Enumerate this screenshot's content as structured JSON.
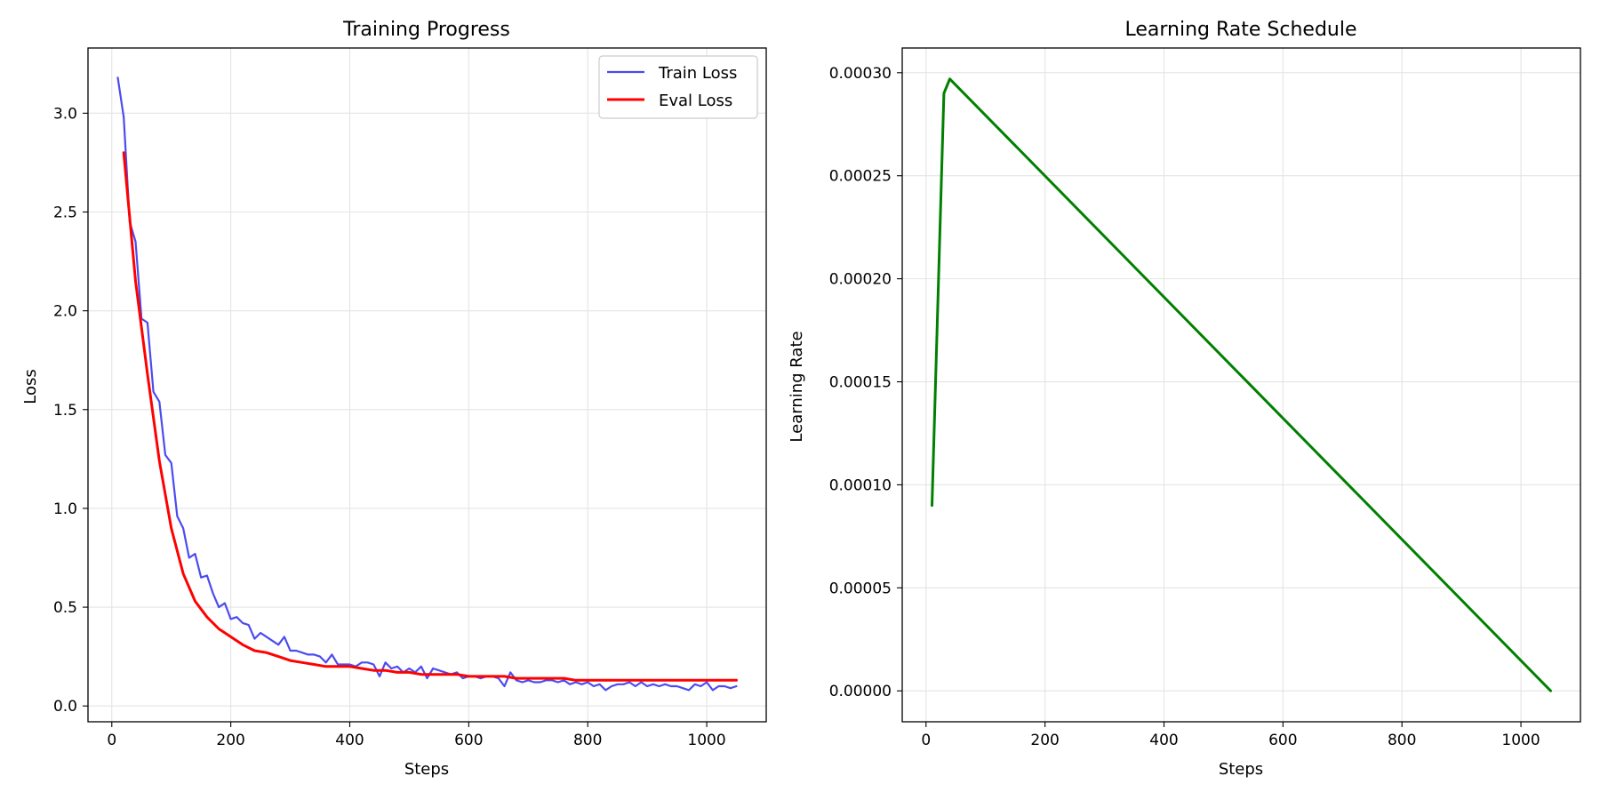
{
  "chart_data": [
    {
      "type": "line",
      "title": "Training Progress",
      "xlabel": "Steps",
      "ylabel": "Loss",
      "xlim": [
        -40,
        1100
      ],
      "ylim": [
        -0.08,
        3.33
      ],
      "xticks": [
        0,
        200,
        400,
        600,
        800,
        1000
      ],
      "yticks": [
        0.0,
        0.5,
        1.0,
        1.5,
        2.0,
        2.5,
        3.0
      ],
      "ytick_decimals": 1,
      "grid": true,
      "legend": "top-right",
      "series": [
        {
          "name": "Train Loss",
          "color": "#4b4bf0",
          "x": [
            10,
            20,
            30,
            40,
            50,
            60,
            70,
            80,
            90,
            100,
            110,
            120,
            130,
            140,
            150,
            160,
            170,
            180,
            190,
            200,
            210,
            220,
            230,
            240,
            250,
            260,
            270,
            280,
            290,
            300,
            310,
            320,
            330,
            340,
            350,
            360,
            370,
            380,
            390,
            400,
            410,
            420,
            430,
            440,
            450,
            460,
            470,
            480,
            490,
            500,
            510,
            520,
            530,
            540,
            550,
            560,
            570,
            580,
            590,
            600,
            610,
            620,
            630,
            640,
            650,
            660,
            670,
            680,
            690,
            700,
            710,
            720,
            730,
            740,
            750,
            760,
            770,
            780,
            790,
            800,
            810,
            820,
            830,
            840,
            850,
            860,
            870,
            880,
            890,
            900,
            910,
            920,
            930,
            940,
            950,
            960,
            970,
            980,
            990,
            1000,
            1010,
            1020,
            1030,
            1040,
            1050
          ],
          "y": [
            3.18,
            2.98,
            2.45,
            2.35,
            1.96,
            1.94,
            1.59,
            1.54,
            1.27,
            1.23,
            0.96,
            0.9,
            0.75,
            0.77,
            0.65,
            0.66,
            0.57,
            0.5,
            0.52,
            0.44,
            0.45,
            0.42,
            0.41,
            0.34,
            0.37,
            0.35,
            0.33,
            0.31,
            0.35,
            0.28,
            0.28,
            0.27,
            0.26,
            0.26,
            0.25,
            0.22,
            0.26,
            0.21,
            0.21,
            0.21,
            0.2,
            0.22,
            0.22,
            0.21,
            0.15,
            0.22,
            0.19,
            0.2,
            0.17,
            0.19,
            0.17,
            0.2,
            0.14,
            0.19,
            0.18,
            0.17,
            0.16,
            0.17,
            0.14,
            0.15,
            0.15,
            0.14,
            0.15,
            0.15,
            0.14,
            0.1,
            0.17,
            0.13,
            0.12,
            0.13,
            0.12,
            0.12,
            0.13,
            0.13,
            0.12,
            0.13,
            0.11,
            0.12,
            0.11,
            0.12,
            0.1,
            0.11,
            0.08,
            0.1,
            0.11,
            0.11,
            0.12,
            0.1,
            0.12,
            0.1,
            0.11,
            0.1,
            0.11,
            0.1,
            0.1,
            0.09,
            0.08,
            0.11,
            0.1,
            0.12,
            0.08,
            0.1,
            0.1,
            0.09,
            0.1
          ]
        },
        {
          "name": "Eval Loss",
          "color": "#ff0000",
          "x": [
            20,
            40,
            60,
            80,
            100,
            120,
            140,
            160,
            180,
            200,
            220,
            240,
            260,
            280,
            300,
            320,
            340,
            360,
            380,
            400,
            420,
            440,
            460,
            480,
            500,
            520,
            540,
            560,
            580,
            600,
            620,
            640,
            660,
            680,
            700,
            720,
            740,
            760,
            780,
            800,
            820,
            840,
            860,
            880,
            900,
            920,
            940,
            960,
            980,
            1000,
            1020,
            1040,
            1050
          ],
          "y": [
            2.8,
            2.15,
            1.68,
            1.24,
            0.9,
            0.67,
            0.53,
            0.45,
            0.39,
            0.35,
            0.31,
            0.28,
            0.27,
            0.25,
            0.23,
            0.22,
            0.21,
            0.2,
            0.2,
            0.2,
            0.19,
            0.18,
            0.18,
            0.17,
            0.17,
            0.16,
            0.16,
            0.16,
            0.16,
            0.15,
            0.15,
            0.15,
            0.15,
            0.14,
            0.14,
            0.14,
            0.14,
            0.14,
            0.13,
            0.13,
            0.13,
            0.13,
            0.13,
            0.13,
            0.13,
            0.13,
            0.13,
            0.13,
            0.13,
            0.13,
            0.13,
            0.13,
            0.13
          ]
        }
      ]
    },
    {
      "type": "line",
      "title": "Learning Rate Schedule",
      "xlabel": "Steps",
      "ylabel": "Learning Rate",
      "xlim": [
        -40,
        1100
      ],
      "ylim": [
        -1.5e-05,
        0.000312
      ],
      "xticks": [
        0,
        200,
        400,
        600,
        800,
        1000
      ],
      "yticks": [
        0.0,
        5e-05,
        0.0001,
        0.00015,
        0.0002,
        0.00025,
        0.0003
      ],
      "ytick_decimals": 5,
      "grid": true,
      "series": [
        {
          "color": "#008000",
          "x": [
            10,
            30,
            40,
            1050
          ],
          "y": [
            9e-05,
            0.00029,
            0.000297,
            0.0
          ]
        }
      ]
    }
  ]
}
